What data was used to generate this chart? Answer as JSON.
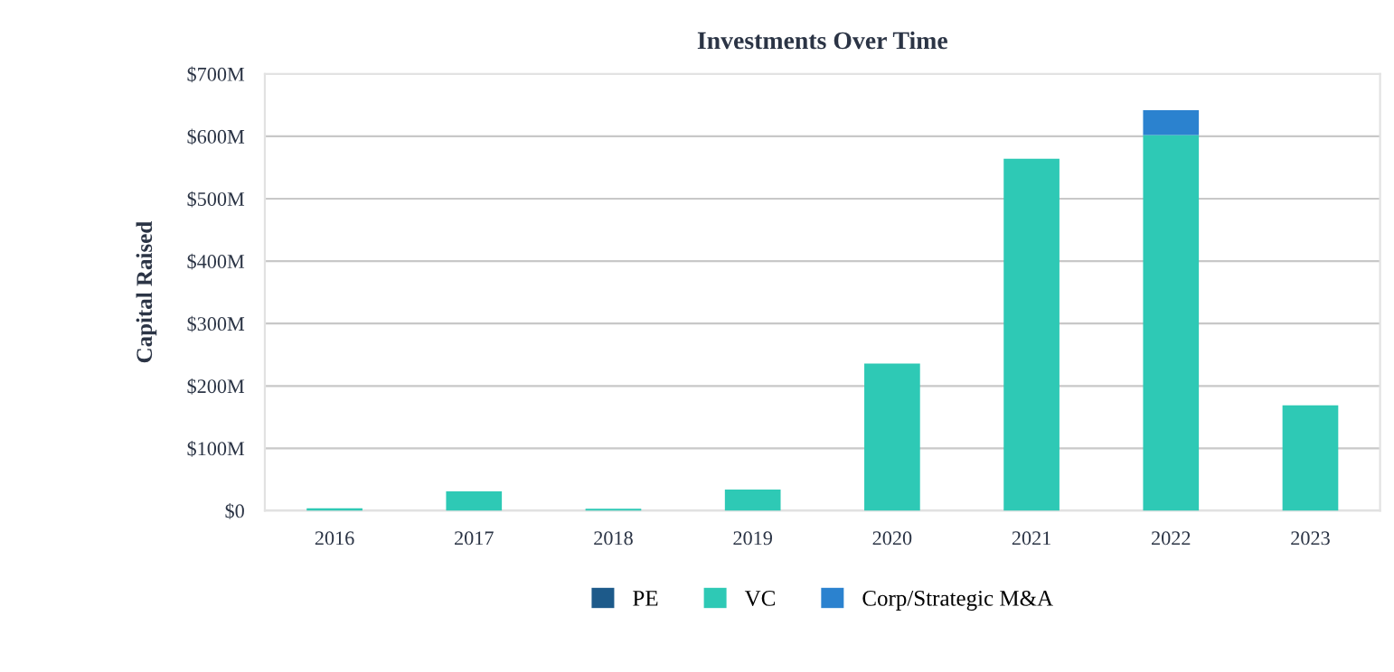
{
  "chart_data": {
    "type": "bar",
    "title": "Investments Over Time",
    "ylabel": "Capital Raised",
    "categories": [
      "2016",
      "2017",
      "2018",
      "2019",
      "2020",
      "2021",
      "2022",
      "2023"
    ],
    "stacked": true,
    "series": [
      {
        "name": "PE",
        "color": "#1d5a8a",
        "values": [
          null,
          null,
          null,
          null,
          null,
          null,
          null,
          null
        ]
      },
      {
        "name": "VC",
        "color": "#2ec9b5",
        "values": [
          4,
          31,
          3,
          34,
          236,
          564,
          602,
          169
        ]
      },
      {
        "name": "Corp/Strategic M&A",
        "color": "#2b82cf",
        "values": [
          null,
          null,
          null,
          null,
          null,
          null,
          40,
          null
        ]
      }
    ],
    "ylim": [
      0,
      700
    ],
    "yticks": [
      {
        "value": 0,
        "label": "$0"
      },
      {
        "value": 100,
        "label": "$100M"
      },
      {
        "value": 200,
        "label": "$200M"
      },
      {
        "value": 300,
        "label": "$300M"
      },
      {
        "value": 400,
        "label": "$400M"
      },
      {
        "value": 500,
        "label": "$500M"
      },
      {
        "value": 600,
        "label": "$600M"
      },
      {
        "value": 700,
        "label": "$700M"
      }
    ],
    "grid": "y",
    "legend": "bottom"
  }
}
